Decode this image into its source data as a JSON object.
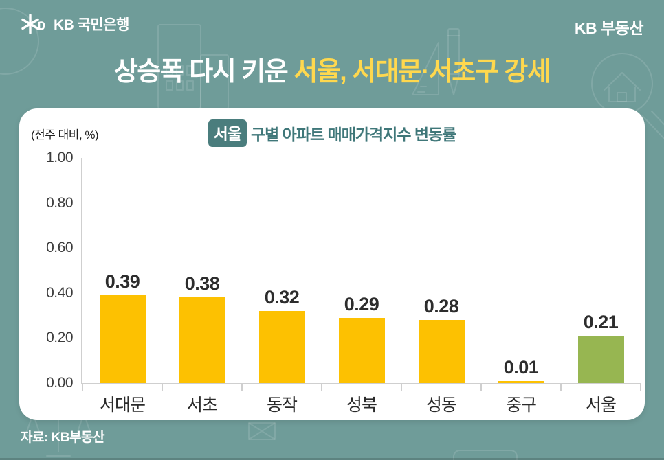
{
  "header": {
    "logo_text": "KB 국민은행",
    "brand_right": "KB 부동산"
  },
  "title": {
    "normal": "상승폭 다시 키운 ",
    "highlight": "서울, 서대문·서초구 강세"
  },
  "chart_card": {
    "unit_label": "(전주 대비, %)",
    "title_badge": "서울",
    "title_rest": "구별 아파트 매매가격지수 변동률"
  },
  "footer": {
    "source": "자료: KB부동산"
  },
  "colors": {
    "background": "#6F9C99",
    "card": "#FFFFFF",
    "bar_yellow": "#FDC101",
    "bar_green": "#97B651",
    "title_highlight": "#FFD84E",
    "badge_bg": "#4A7D7D",
    "teal_text": "#3F7779",
    "axis_line": "#CFCFCF"
  },
  "chart_data": {
    "type": "bar",
    "title": "서울 구별 아파트 매매가격지수 변동률",
    "unit": "(전주 대비, %)",
    "categories": [
      "서대문",
      "서초",
      "동작",
      "성북",
      "성동",
      "중구",
      "서울"
    ],
    "values": [
      0.39,
      0.38,
      0.32,
      0.29,
      0.28,
      0.01,
      0.21
    ],
    "value_labels": [
      "0.39",
      "0.38",
      "0.32",
      "0.29",
      "0.28",
      "0.01",
      "0.21"
    ],
    "bar_colors": [
      "#FDC101",
      "#FDC101",
      "#FDC101",
      "#FDC101",
      "#FDC101",
      "#FDC101",
      "#97B651"
    ],
    "ylim": [
      0,
      1.0
    ],
    "yticks": [
      "0.00",
      "0.20",
      "0.40",
      "0.60",
      "0.80",
      "1.00"
    ],
    "grid": false,
    "legend": null,
    "source": "자료: KB부동산"
  }
}
